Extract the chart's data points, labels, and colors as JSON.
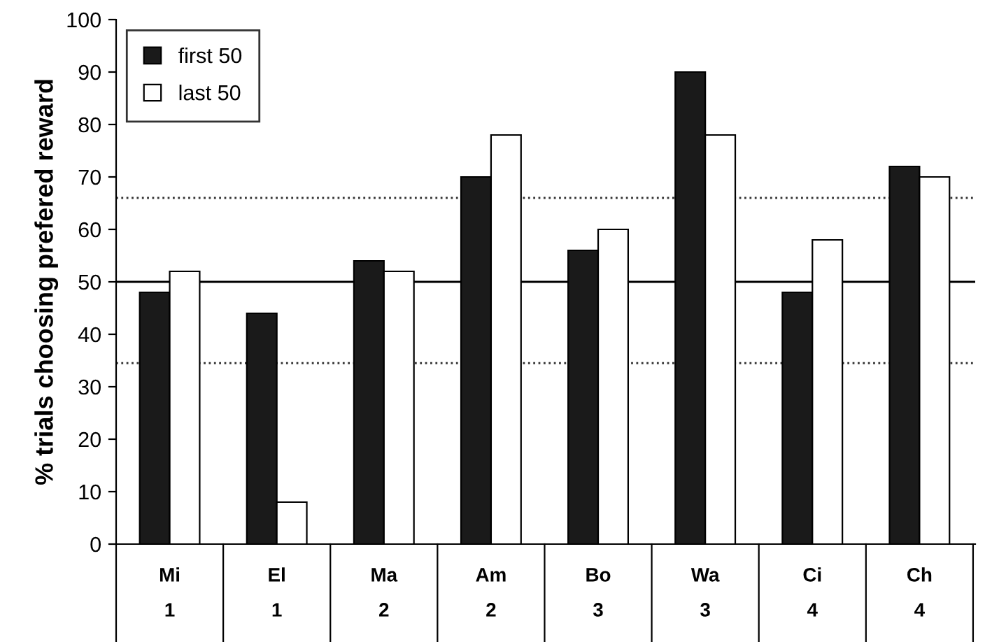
{
  "chart_data": {
    "type": "bar",
    "ylabel": "% trials choosing prefered reward",
    "categories": [
      "Mi\n1",
      "El\n1",
      "Ma\n2",
      "Am\n2",
      "Bo\n3",
      "Wa\n3",
      "Ci\n4",
      "Ch\n4"
    ],
    "series": [
      {
        "name": "first 50",
        "color": "#1a1a1a",
        "values": [
          48,
          44,
          54,
          70,
          56,
          90,
          48,
          72
        ]
      },
      {
        "name": "last 50",
        "color": "#ffffff",
        "values": [
          52,
          8,
          52,
          78,
          60,
          78,
          58,
          70
        ]
      }
    ],
    "ylim": [
      0,
      100
    ],
    "yticks": [
      0,
      10,
      20,
      30,
      40,
      50,
      60,
      70,
      80,
      90,
      100
    ],
    "ref_lines": [
      {
        "axis": "y",
        "value": 50,
        "line_style": "solid",
        "color": "#000000"
      },
      {
        "axis": "y",
        "value": 66,
        "line_style": "dotted",
        "color": "#333333"
      },
      {
        "axis": "y",
        "value": 34.5,
        "line_style": "dotted",
        "color": "#333333"
      }
    ],
    "legend": "top left",
    "grid": false
  }
}
